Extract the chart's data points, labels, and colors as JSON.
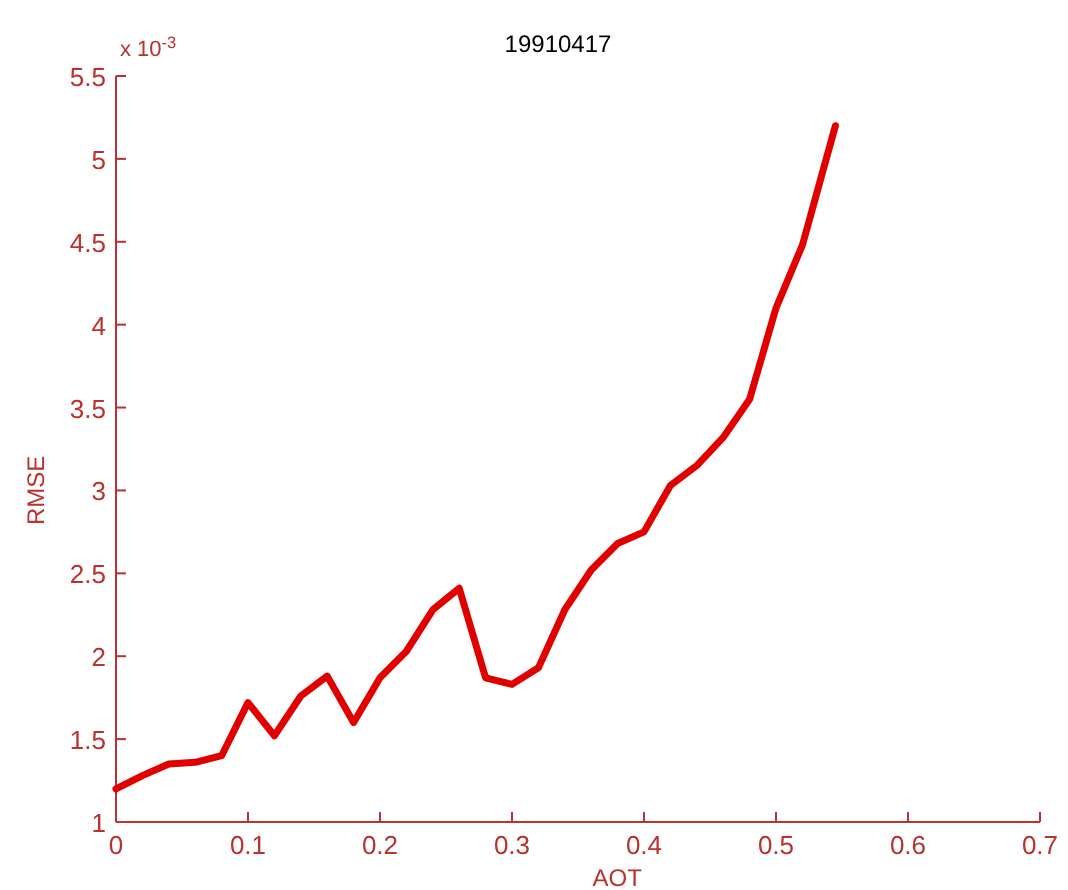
{
  "chart_data": {
    "type": "line",
    "title": "19910417",
    "xlabel": "AOT",
    "ylabel": "RMSE",
    "annotations": [
      "x 10$^{-3}$"
    ],
    "x": [
      0,
      0.02,
      0.04,
      0.06,
      0.08,
      0.1,
      0.12,
      0.14,
      0.16,
      0.18,
      0.2,
      0.22,
      0.24,
      0.26,
      0.28,
      0.3,
      0.32,
      0.34,
      0.36,
      0.38,
      0.4,
      0.42,
      0.44,
      0.46,
      0.48,
      0.5,
      0.52,
      0.545
    ],
    "series": [
      {
        "color": "#e00000",
        "values": [
          1.2,
          1.28,
          1.35,
          1.36,
          1.4,
          1.72,
          1.52,
          1.76,
          1.88,
          1.6,
          1.87,
          2.03,
          2.28,
          2.41,
          1.87,
          1.83,
          1.93,
          2.28,
          2.52,
          2.68,
          2.75,
          3.03,
          3.15,
          3.32,
          3.55,
          4.1,
          4.48,
          5.2
        ]
      }
    ],
    "xlim": [
      0,
      0.7
    ],
    "xticks": [
      0,
      0.1,
      0.2,
      0.3,
      0.4,
      0.5,
      0.6,
      0.7
    ],
    "ylim": [
      1,
      5.5
    ],
    "yticks": [
      1,
      1.5,
      2,
      2.5,
      3,
      3.5,
      4,
      4.5,
      5,
      5.5
    ],
    "grid": false,
    "marker": "none",
    "line_style": "solid"
  }
}
